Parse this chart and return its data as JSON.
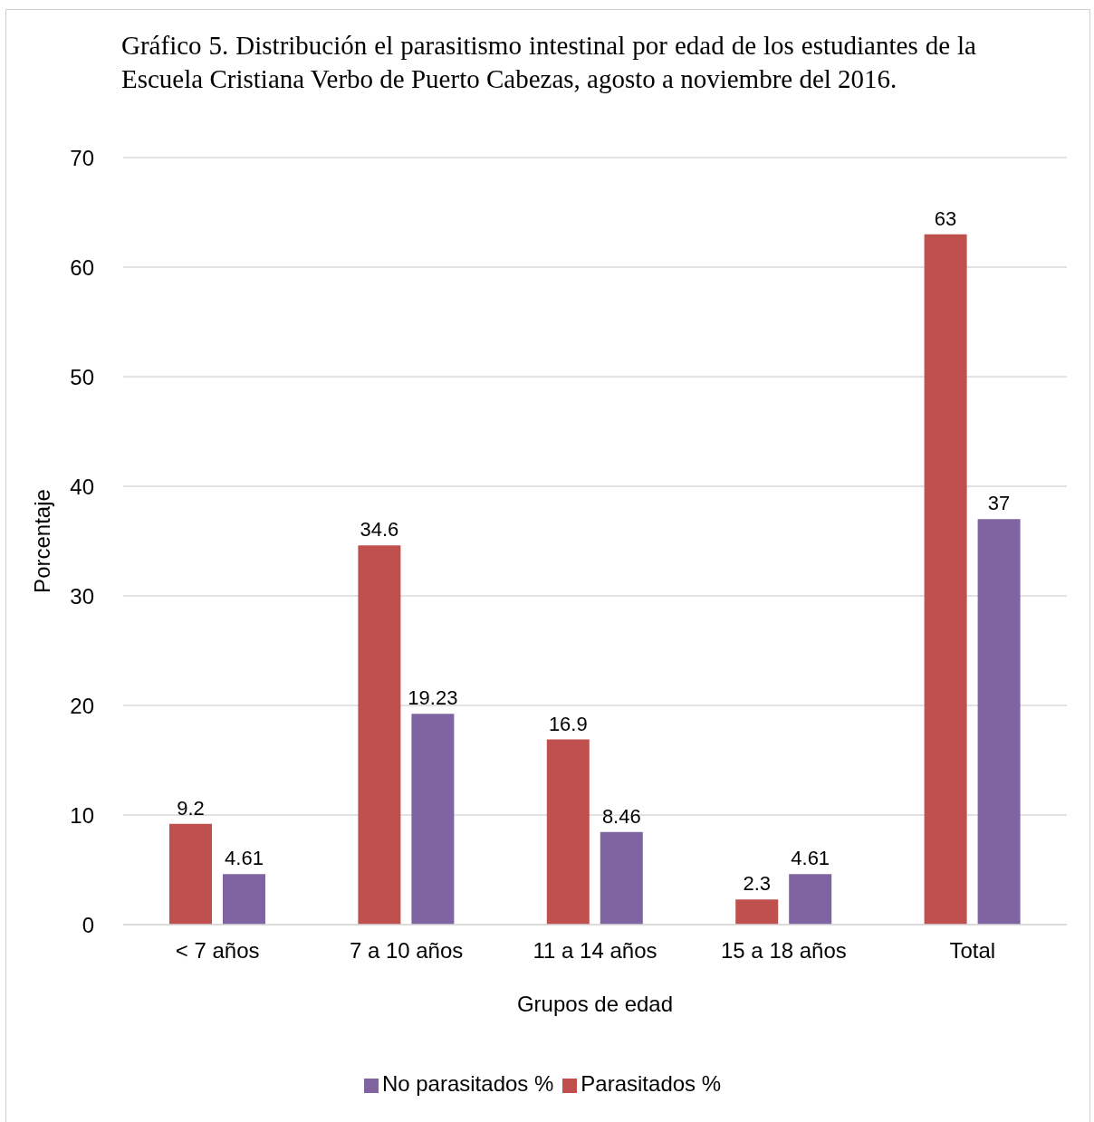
{
  "chart_data": {
    "type": "bar",
    "title": "Gráfico 5. Distribución el parasitismo intestinal por edad de los estudiantes de la Escuela Cristiana Verbo de Puerto Cabezas, agosto a noviembre del 2016.",
    "xlabel": "Grupos de edad",
    "ylabel": "Porcentaje",
    "categories": [
      "< 7 años",
      "7 a 10 años",
      "11 a 14 años",
      "15 a 18 años",
      "Total"
    ],
    "series": [
      {
        "name": "Parasitados %",
        "color": "#c0504d",
        "values": [
          9.2,
          34.6,
          16.9,
          2.3,
          63
        ]
      },
      {
        "name": "No parasitados %",
        "color": "#8064a2",
        "values": [
          4.61,
          19.23,
          8.46,
          4.61,
          37
        ]
      }
    ],
    "ylim": [
      0,
      70
    ],
    "yticks": [
      0,
      10,
      20,
      30,
      40,
      50,
      60,
      70
    ],
    "grid": "y",
    "legend": "bottom",
    "data_labels": true
  }
}
